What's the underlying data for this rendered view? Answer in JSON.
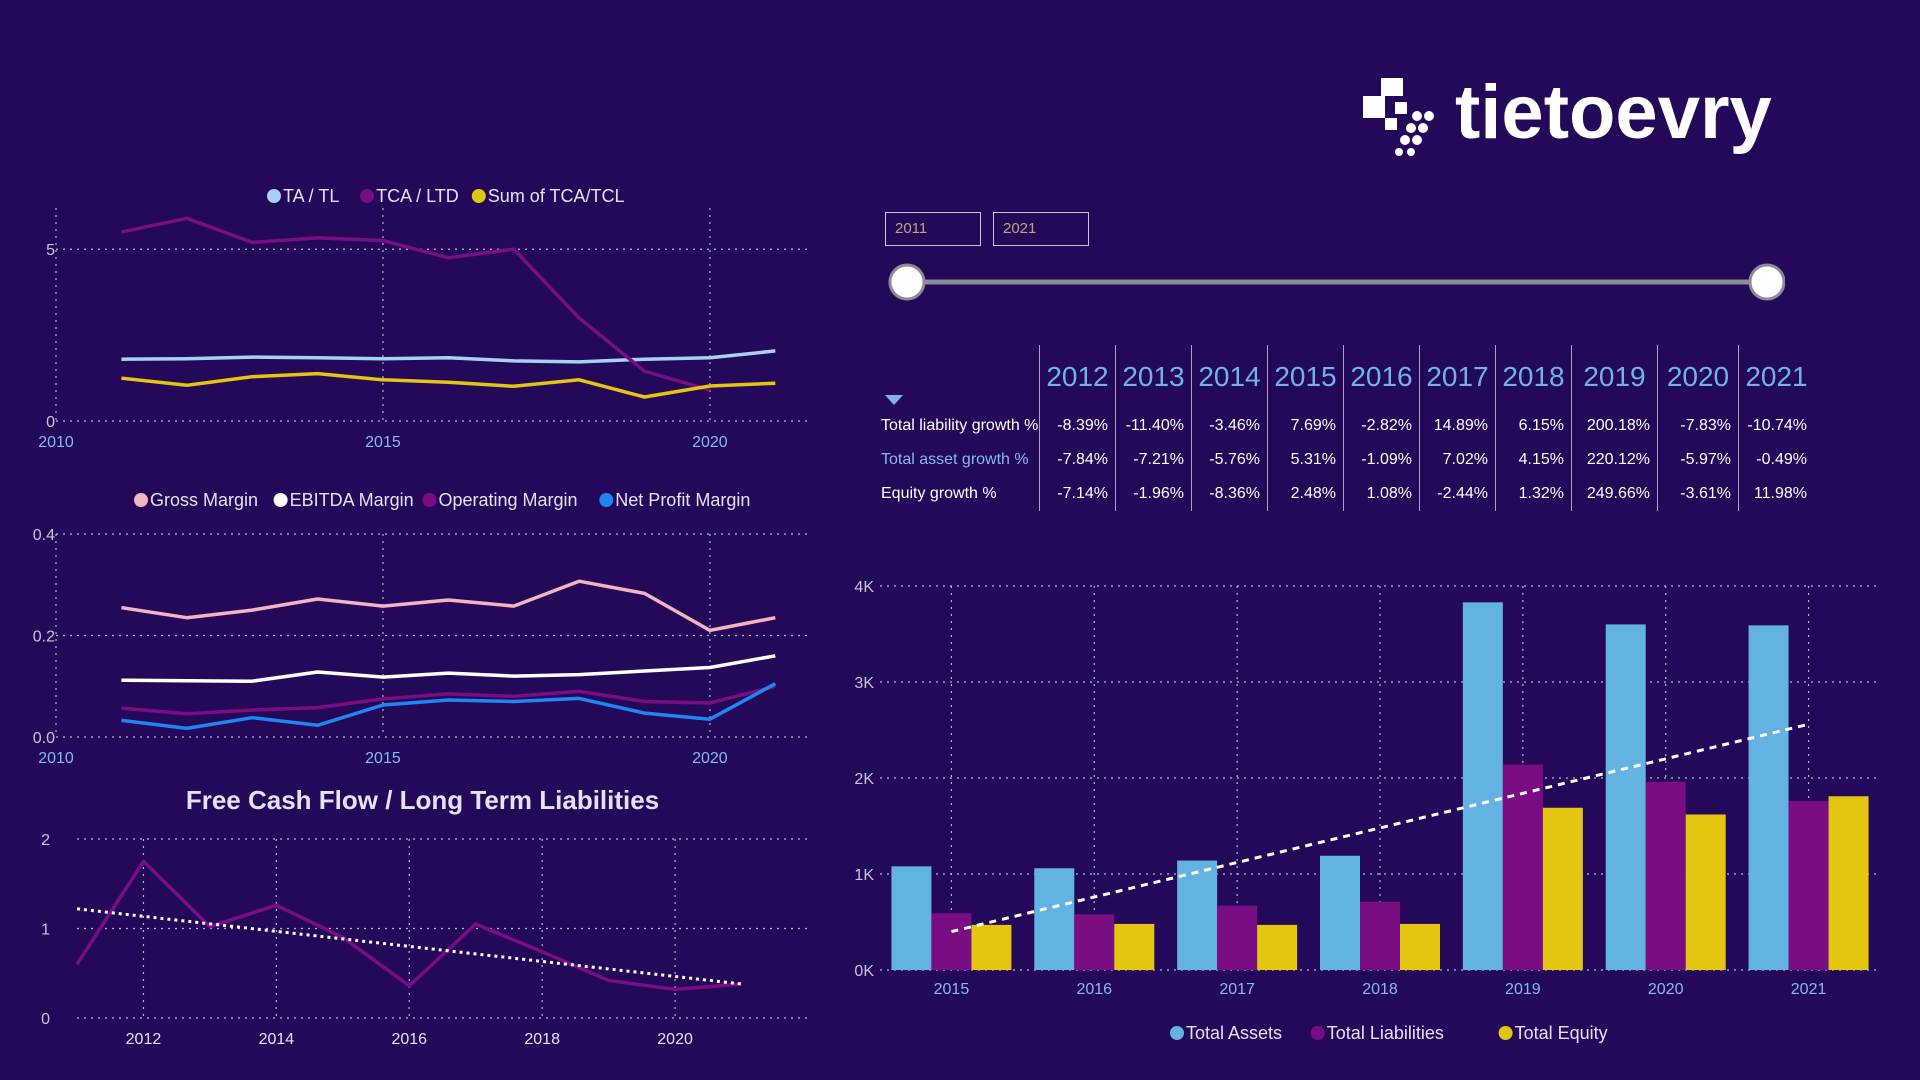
{
  "brand": {
    "name": "tietoevry"
  },
  "slicer": {
    "start_year": "2011",
    "end_year": "2021"
  },
  "colors": {
    "background": "#24095a",
    "ta_tl": "#a8d0f5",
    "tca_ltd": "#7a0d84",
    "tca_tcl": "#e3c612",
    "gross": "#f1b5c2",
    "ebitda": "#ffffff",
    "operating": "#7a0d84",
    "net_profit": "#1e86f0",
    "fcf": "#7a0d84",
    "assets": "#62b2e2",
    "liabilities": "#7a0d84",
    "equity": "#e3c612"
  },
  "growth_table": {
    "years": [
      "2012",
      "2013",
      "2014",
      "2015",
      "2016",
      "2017",
      "2018",
      "2019",
      "2020",
      "2021"
    ],
    "rows": [
      {
        "label": "Total liability growth %",
        "values": [
          "-8.39%",
          "-11.40%",
          "-3.46%",
          "7.69%",
          "-2.82%",
          "14.89%",
          "6.15%",
          "200.18%",
          "-7.83%",
          "-10.74%"
        ]
      },
      {
        "label": "Total asset growth %",
        "values": [
          "-7.84%",
          "-7.21%",
          "-5.76%",
          "5.31%",
          "-1.09%",
          "7.02%",
          "4.15%",
          "220.12%",
          "-5.97%",
          "-0.49%"
        ]
      },
      {
        "label": "Equity growth %",
        "values": [
          "-7.14%",
          "-1.96%",
          "-8.36%",
          "2.48%",
          "1.08%",
          "-2.44%",
          "1.32%",
          "249.66%",
          "-3.61%",
          "11.98%"
        ]
      }
    ]
  },
  "chart_data": [
    {
      "id": "ratios",
      "type": "line",
      "title": "",
      "x": [
        2011,
        2012,
        2013,
        2014,
        2015,
        2016,
        2017,
        2018,
        2019,
        2020,
        2021
      ],
      "series": [
        {
          "name": "TA / TL",
          "values": [
            1.8,
            1.81,
            1.86,
            1.84,
            1.81,
            1.84,
            1.75,
            1.72,
            1.8,
            1.84,
            2.04
          ]
        },
        {
          "name": "TCA / LTD",
          "values": [
            5.5,
            5.9,
            5.2,
            5.33,
            5.25,
            4.75,
            5.0,
            3.0,
            1.45,
            0.9,
            null
          ]
        },
        {
          "name": "Sum of TCA/TCL",
          "values": [
            1.25,
            1.04,
            1.29,
            1.38,
            1.2,
            1.13,
            1.01,
            1.2,
            0.7,
            1.02,
            1.1
          ]
        }
      ],
      "xticks": [
        "2010",
        "2015",
        "2020"
      ],
      "yticks": [
        "0",
        "5"
      ],
      "xlim": [
        2010,
        2021.5
      ],
      "ylim": [
        0,
        6.2
      ],
      "legend": "top-center",
      "grid": true
    },
    {
      "id": "margins",
      "type": "line",
      "title": "",
      "x": [
        2011,
        2012,
        2013,
        2014,
        2015,
        2016,
        2017,
        2018,
        2019,
        2020,
        2021
      ],
      "series": [
        {
          "name": "Gross Margin",
          "values": [
            0.255,
            0.235,
            0.25,
            0.272,
            0.258,
            0.27,
            0.258,
            0.307,
            0.283,
            0.21,
            0.235
          ]
        },
        {
          "name": "EBITDA Margin",
          "values": [
            0.112,
            0.111,
            0.11,
            0.128,
            0.118,
            0.126,
            0.12,
            0.123,
            0.13,
            0.137,
            0.16
          ]
        },
        {
          "name": "Operating Margin",
          "values": [
            0.057,
            0.046,
            0.053,
            0.058,
            0.075,
            0.085,
            0.08,
            0.09,
            0.07,
            0.067,
            0.1
          ]
        },
        {
          "name": "Net Profit Margin",
          "values": [
            0.033,
            0.017,
            0.038,
            0.023,
            0.063,
            0.073,
            0.07,
            0.076,
            0.047,
            0.035,
            0.105
          ]
        }
      ],
      "xticks": [
        "2010",
        "2015",
        "2020"
      ],
      "yticks": [
        "0.0",
        "0.2",
        "0.4"
      ],
      "xlim": [
        2010,
        2021.5
      ],
      "ylim": [
        0,
        0.4
      ],
      "legend": "top-center",
      "grid": true
    },
    {
      "id": "fcf",
      "type": "line",
      "title": "Free Cash Flow / Long Term Liabilities",
      "x": [
        2011,
        2012,
        2013,
        2014,
        2015,
        2016,
        2017,
        2018,
        2019,
        2020,
        2021
      ],
      "series": [
        {
          "name": "",
          "values": [
            0.6,
            1.75,
            1.02,
            1.26,
            0.9,
            0.36,
            1.05,
            0.74,
            0.42,
            0.32,
            0.38
          ]
        }
      ],
      "trendline": [
        1.22,
        0.38
      ],
      "xticks": [
        "2012",
        "2014",
        "2016",
        "2018",
        "2020"
      ],
      "yticks": [
        "0",
        "1",
        "2"
      ],
      "xlim": [
        2011,
        2022
      ],
      "ylim": [
        0,
        2
      ],
      "legend": "none",
      "grid": true
    },
    {
      "id": "balance",
      "type": "bar",
      "title": "",
      "categories": [
        "2015",
        "2016",
        "2017",
        "2018",
        "2019",
        "2020",
        "2021"
      ],
      "series": [
        {
          "name": "Total Assets",
          "values": [
            1080,
            1060,
            1140,
            1190,
            3830,
            3600,
            3590
          ]
        },
        {
          "name": "Total Liabilities",
          "values": [
            590,
            580,
            670,
            710,
            2140,
            1960,
            1760
          ]
        },
        {
          "name": "Total Equity",
          "values": [
            470,
            480,
            470,
            480,
            1690,
            1620,
            1810
          ]
        }
      ],
      "trendline": [
        400,
        2560
      ],
      "yticks": [
        "0K",
        "1K",
        "2K",
        "3K",
        "4K"
      ],
      "ylim": [
        0,
        4000
      ],
      "legend": "bottom-center",
      "grid": true
    }
  ]
}
